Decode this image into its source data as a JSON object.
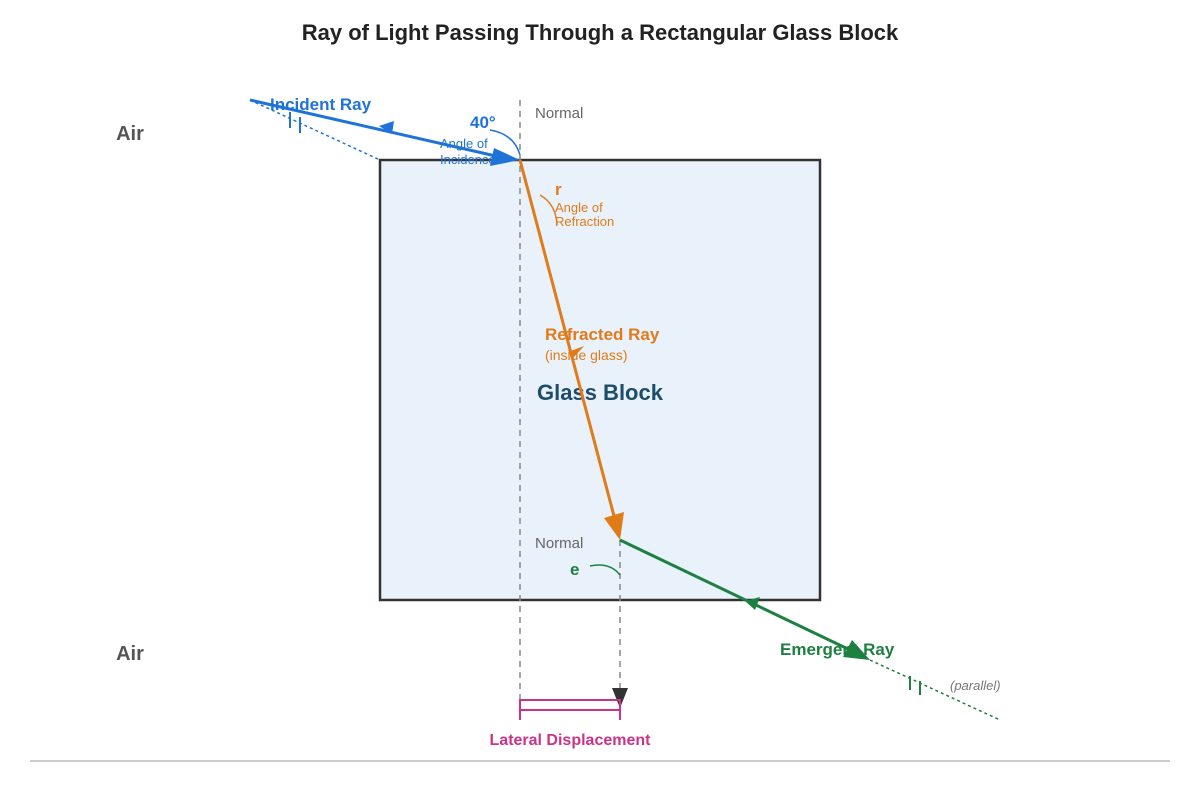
{
  "title": "Ray of Light Passing Through a Rectangular Glass Block",
  "media": {
    "top": "Air",
    "bottom": "Air",
    "block": "Glass Block"
  },
  "normals": {
    "top": "Normal",
    "bottom": "Normal"
  },
  "incident": {
    "label": "Incident Ray",
    "angle_value": "40°",
    "angle_caption_1": "Angle of",
    "angle_caption_2": "Incidence",
    "color": "#1f73d8"
  },
  "refracted": {
    "label": "Refracted Ray",
    "sublabel": "(inside glass)",
    "angle_symbol": "r",
    "angle_caption_1": "Angle of",
    "angle_caption_2": "Refraction",
    "color": "#e07b1a"
  },
  "emergent": {
    "label": "Emergent Ray",
    "angle_symbol": "e",
    "parallel_note": "(parallel)",
    "color": "#1e8040"
  },
  "lateral_displacement": {
    "label": "Lateral Displacement",
    "color": "#cc3388"
  },
  "colors": {
    "glass_fill": "#e9f2fa",
    "glass_border": "#333333",
    "normal_line": "#888888"
  }
}
